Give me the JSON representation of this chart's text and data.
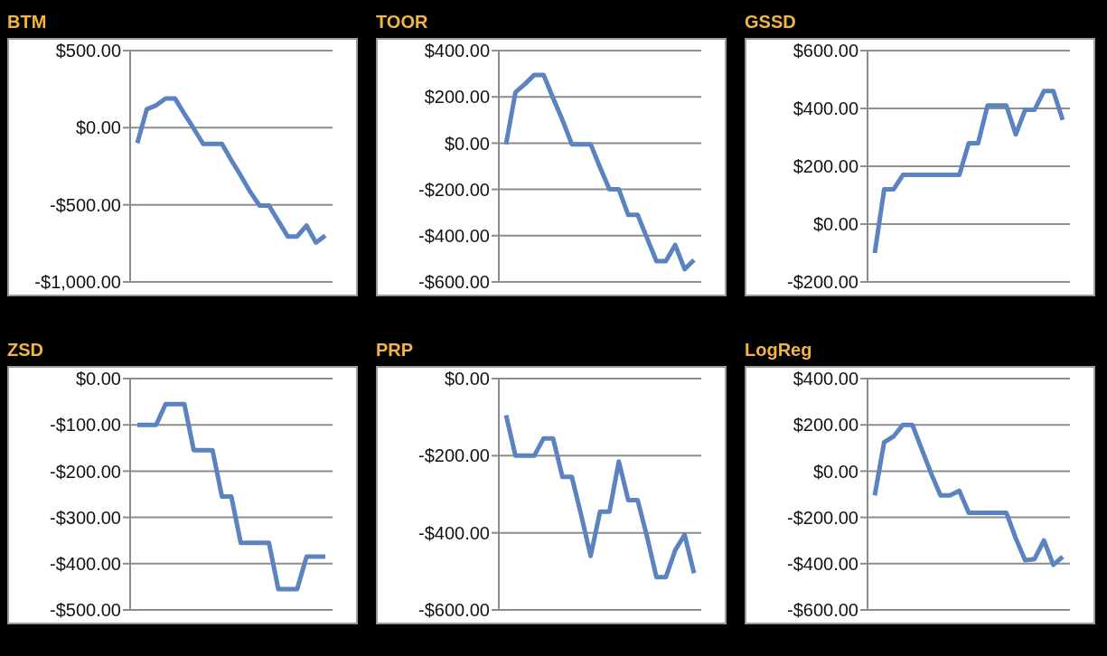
{
  "chart_data": [
    {
      "type": "line",
      "title": "BTM",
      "categories": [
        null,
        null,
        null,
        null,
        null,
        null,
        null,
        null,
        null,
        null,
        null,
        null,
        null,
        null,
        null,
        null,
        null,
        null,
        null,
        null,
        null
      ],
      "values": [
        -100,
        120,
        145,
        190,
        190,
        90,
        -5,
        -105,
        -105,
        -105,
        -210,
        -310,
        -415,
        -505,
        -505,
        -605,
        -705,
        -705,
        -635,
        -745,
        -700
      ],
      "color": "#5b83bf",
      "ylim": [
        -1000,
        500
      ],
      "yticks": [
        {
          "value": -1000,
          "label": "-$1,000.00"
        },
        {
          "value": -500,
          "label": "-$500.00"
        },
        {
          "value": 0,
          "label": "$0.00"
        },
        {
          "value": 500,
          "label": "$500.00"
        }
      ],
      "grid": "y",
      "marker": "none"
    },
    {
      "type": "line",
      "title": "TOOR",
      "categories": [
        null,
        null,
        null,
        null,
        null,
        null,
        null,
        null,
        null,
        null,
        null,
        null,
        null,
        null,
        null,
        null,
        null,
        null,
        null,
        null,
        null
      ],
      "values": [
        -5,
        220,
        255,
        295,
        295,
        195,
        100,
        -5,
        -5,
        -5,
        -105,
        -200,
        -200,
        -310,
        -310,
        -410,
        -510,
        -510,
        -440,
        -545,
        -505
      ],
      "color": "#5b83bf",
      "ylim": [
        -600,
        400
      ],
      "yticks": [
        {
          "value": -600,
          "label": "-$600.00"
        },
        {
          "value": -400,
          "label": "-$400.00"
        },
        {
          "value": -200,
          "label": "-$200.00"
        },
        {
          "value": 0,
          "label": "$0.00"
        },
        {
          "value": 200,
          "label": "$200.00"
        },
        {
          "value": 400,
          "label": "$400.00"
        }
      ],
      "grid": "y",
      "marker": "none"
    },
    {
      "type": "line",
      "title": "GSSD",
      "categories": [
        null,
        null,
        null,
        null,
        null,
        null,
        null,
        null,
        null,
        null,
        null,
        null,
        null,
        null,
        null,
        null,
        null,
        null,
        null,
        null,
        null
      ],
      "values": [
        -100,
        120,
        120,
        170,
        170,
        170,
        170,
        170,
        170,
        170,
        280,
        280,
        410,
        410,
        410,
        310,
        395,
        395,
        460,
        460,
        360
      ],
      "color": "#5b83bf",
      "ylim": [
        -200,
        600
      ],
      "yticks": [
        {
          "value": -200,
          "label": "-$200.00"
        },
        {
          "value": 0,
          "label": "$0.00"
        },
        {
          "value": 200,
          "label": "$200.00"
        },
        {
          "value": 400,
          "label": "$400.00"
        },
        {
          "value": 600,
          "label": "$600.00"
        }
      ],
      "grid": "y",
      "marker": "none"
    },
    {
      "type": "line",
      "title": "ZSD",
      "categories": [
        null,
        null,
        null,
        null,
        null,
        null,
        null,
        null,
        null,
        null,
        null,
        null,
        null,
        null,
        null,
        null,
        null,
        null,
        null,
        null,
        null
      ],
      "values": [
        -100,
        -100,
        -100,
        -55,
        -55,
        -55,
        -155,
        -155,
        -155,
        -255,
        -255,
        -355,
        -355,
        -355,
        -355,
        -455,
        -455,
        -455,
        -385,
        -385,
        -385
      ],
      "color": "#5b83bf",
      "ylim": [
        -500,
        0
      ],
      "yticks": [
        {
          "value": -500,
          "label": "-$500.00"
        },
        {
          "value": -400,
          "label": "-$400.00"
        },
        {
          "value": -300,
          "label": "-$300.00"
        },
        {
          "value": -200,
          "label": "-$200.00"
        },
        {
          "value": -100,
          "label": "-$100.00"
        },
        {
          "value": 0,
          "label": "$0.00"
        }
      ],
      "grid": "y",
      "marker": "none"
    },
    {
      "type": "line",
      "title": "PRP",
      "categories": [
        null,
        null,
        null,
        null,
        null,
        null,
        null,
        null,
        null,
        null,
        null,
        null,
        null,
        null,
        null,
        null,
        null,
        null,
        null,
        null,
        null
      ],
      "values": [
        -95,
        -200,
        -200,
        -200,
        -155,
        -155,
        -255,
        -255,
        -355,
        -460,
        -345,
        -345,
        -215,
        -315,
        -315,
        -410,
        -515,
        -515,
        -445,
        -405,
        -505
      ],
      "color": "#5b83bf",
      "ylim": [
        -600,
        0
      ],
      "yticks": [
        {
          "value": -600,
          "label": "-$600.00"
        },
        {
          "value": -400,
          "label": "-$400.00"
        },
        {
          "value": -200,
          "label": "-$200.00"
        },
        {
          "value": 0,
          "label": "$0.00"
        }
      ],
      "grid": "y",
      "marker": "none"
    },
    {
      "type": "line",
      "title": "LogReg",
      "categories": [
        null,
        null,
        null,
        null,
        null,
        null,
        null,
        null,
        null,
        null,
        null,
        null,
        null,
        null,
        null,
        null,
        null,
        null,
        null,
        null,
        null
      ],
      "values": [
        -105,
        125,
        150,
        200,
        200,
        95,
        -10,
        -105,
        -105,
        -85,
        -180,
        -180,
        -180,
        -180,
        -180,
        -290,
        -385,
        -380,
        -300,
        -405,
        -370
      ],
      "color": "#5b83bf",
      "ylim": [
        -600,
        400
      ],
      "yticks": [
        {
          "value": -600,
          "label": "-$600.00"
        },
        {
          "value": -400,
          "label": "-$400.00"
        },
        {
          "value": -200,
          "label": "-$200.00"
        },
        {
          "value": 0,
          "label": "$0.00"
        },
        {
          "value": 200,
          "label": "$200.00"
        },
        {
          "value": 400,
          "label": "$400.00"
        }
      ],
      "grid": "y",
      "marker": "none"
    }
  ]
}
